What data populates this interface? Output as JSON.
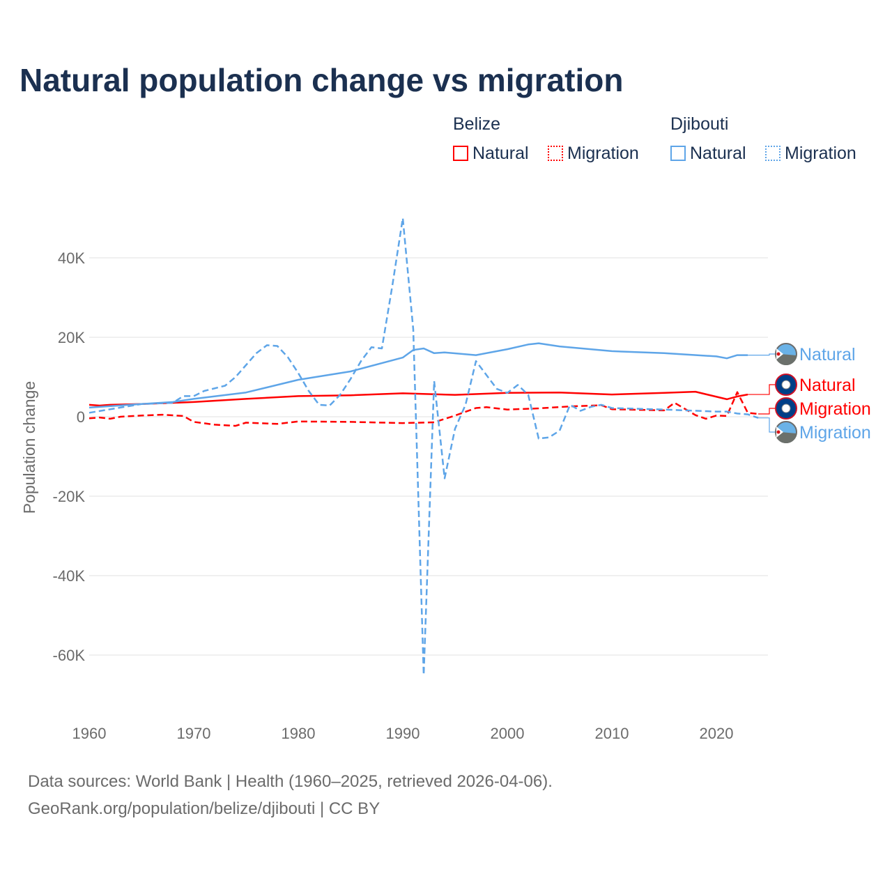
{
  "chart_data": {
    "type": "line",
    "title": "Natural population change vs migration",
    "ylabel": "Population change",
    "xlabel": "",
    "xlim": [
      1960,
      2025
    ],
    "ylim": [
      -65000,
      50000
    ],
    "x_ticks": [
      "1960",
      "1970",
      "1980",
      "1990",
      "2000",
      "2010",
      "2020"
    ],
    "y_ticks": [
      {
        "v": 40000,
        "label": "40K"
      },
      {
        "v": 20000,
        "label": "20K"
      },
      {
        "v": 0,
        "label": "0"
      },
      {
        "v": -20000,
        "label": "-20K"
      },
      {
        "v": -40000,
        "label": "-40K"
      },
      {
        "v": -60000,
        "label": "-60K"
      }
    ],
    "legend_groups": [
      {
        "name": "Belize",
        "items": [
          "Natural",
          "Migration"
        ]
      },
      {
        "name": "Djibouti",
        "items": [
          "Natural",
          "Migration"
        ]
      }
    ],
    "series": [
      {
        "name": "Belize Natural",
        "country": "Belize",
        "kind": "Natural",
        "color": "#ff0000",
        "dash": false,
        "label": "Natural",
        "points": [
          [
            1960,
            3000
          ],
          [
            1961,
            2800
          ],
          [
            1962,
            3000
          ],
          [
            1965,
            3200
          ],
          [
            1970,
            3700
          ],
          [
            1975,
            4500
          ],
          [
            1980,
            5200
          ],
          [
            1985,
            5400
          ],
          [
            1990,
            5900
          ],
          [
            1995,
            5500
          ],
          [
            2000,
            6000
          ],
          [
            2005,
            6100
          ],
          [
            2010,
            5600
          ],
          [
            2015,
            6000
          ],
          [
            2018,
            6300
          ],
          [
            2021,
            4400
          ],
          [
            2022,
            5100
          ],
          [
            2023,
            5600
          ]
        ]
      },
      {
        "name": "Belize Migration",
        "country": "Belize",
        "kind": "Migration",
        "color": "#ff0000",
        "dash": true,
        "label": "Migration",
        "points": [
          [
            1960,
            -400
          ],
          [
            1961,
            -200
          ],
          [
            1962,
            -500
          ],
          [
            1963,
            0
          ],
          [
            1965,
            300
          ],
          [
            1967,
            500
          ],
          [
            1969,
            200
          ],
          [
            1970,
            -1300
          ],
          [
            1972,
            -2000
          ],
          [
            1974,
            -2300
          ],
          [
            1975,
            -1500
          ],
          [
            1978,
            -1800
          ],
          [
            1980,
            -1200
          ],
          [
            1985,
            -1300
          ],
          [
            1990,
            -1600
          ],
          [
            1993,
            -1400
          ],
          [
            1995,
            300
          ],
          [
            1997,
            2200
          ],
          [
            1998,
            2400
          ],
          [
            2000,
            1800
          ],
          [
            2003,
            2100
          ],
          [
            2006,
            2600
          ],
          [
            2009,
            2900
          ],
          [
            2010,
            1900
          ],
          [
            2015,
            1600
          ],
          [
            2016,
            3500
          ],
          [
            2018,
            400
          ],
          [
            2019,
            -500
          ],
          [
            2020,
            300
          ],
          [
            2021,
            200
          ],
          [
            2022,
            6200
          ],
          [
            2023,
            1000
          ],
          [
            2024,
            700
          ]
        ]
      },
      {
        "name": "Djibouti Natural",
        "country": "Djibouti",
        "kind": "Natural",
        "color": "#5ea5e8",
        "dash": false,
        "label": "Natural",
        "points": [
          [
            1960,
            2300
          ],
          [
            1965,
            3200
          ],
          [
            1968,
            3700
          ],
          [
            1970,
            4500
          ],
          [
            1975,
            6100
          ],
          [
            1980,
            9300
          ],
          [
            1985,
            11400
          ],
          [
            1990,
            14900
          ],
          [
            1991,
            16800
          ],
          [
            1992,
            17200
          ],
          [
            1993,
            16000
          ],
          [
            1994,
            16200
          ],
          [
            1997,
            15500
          ],
          [
            2000,
            17000
          ],
          [
            2002,
            18200
          ],
          [
            2003,
            18500
          ],
          [
            2005,
            17700
          ],
          [
            2010,
            16500
          ],
          [
            2015,
            16000
          ],
          [
            2020,
            15200
          ],
          [
            2021,
            14700
          ],
          [
            2022,
            15500
          ],
          [
            2023,
            15500
          ]
        ]
      },
      {
        "name": "Djibouti Migration",
        "country": "Djibouti",
        "kind": "Migration",
        "color": "#5ea5e8",
        "dash": true,
        "label": "Migration",
        "points": [
          [
            1960,
            1000
          ],
          [
            1965,
            3200
          ],
          [
            1968,
            3500
          ],
          [
            1969,
            5200
          ],
          [
            1970,
            5200
          ],
          [
            1971,
            6500
          ],
          [
            1973,
            7800
          ],
          [
            1974,
            10000
          ],
          [
            1976,
            16000
          ],
          [
            1977,
            18000
          ],
          [
            1978,
            17800
          ],
          [
            1979,
            15000
          ],
          [
            1980,
            11000
          ],
          [
            1981,
            6500
          ],
          [
            1982,
            3000
          ],
          [
            1983,
            2800
          ],
          [
            1984,
            5500
          ],
          [
            1985,
            9500
          ],
          [
            1986,
            14000
          ],
          [
            1987,
            17500
          ],
          [
            1988,
            17200
          ],
          [
            1989,
            33000
          ],
          [
            1990,
            50000
          ],
          [
            1991,
            22000
          ],
          [
            1992,
            -65000
          ],
          [
            1993,
            9000
          ],
          [
            1994,
            -15500
          ],
          [
            1995,
            -3000
          ],
          [
            1996,
            3000
          ],
          [
            1997,
            14000
          ],
          [
            1998,
            10500
          ],
          [
            1999,
            7000
          ],
          [
            2000,
            6000
          ],
          [
            2001,
            8000
          ],
          [
            2002,
            5500
          ],
          [
            2003,
            -5500
          ],
          [
            2004,
            -5200
          ],
          [
            2005,
            -3500
          ],
          [
            2006,
            3000
          ],
          [
            2007,
            1500
          ],
          [
            2008,
            2500
          ],
          [
            2009,
            3000
          ],
          [
            2010,
            2200
          ],
          [
            2015,
            1800
          ],
          [
            2020,
            1300
          ],
          [
            2021,
            1300
          ],
          [
            2022,
            800
          ],
          [
            2023,
            600
          ],
          [
            2024,
            -300
          ]
        ]
      }
    ]
  },
  "footer": {
    "line1": "Data sources: World Bank | Health (1960–2025, retrieved 2026-04-06).",
    "line2": "GeoRank.org/population/belize/djibouti | CC BY"
  }
}
